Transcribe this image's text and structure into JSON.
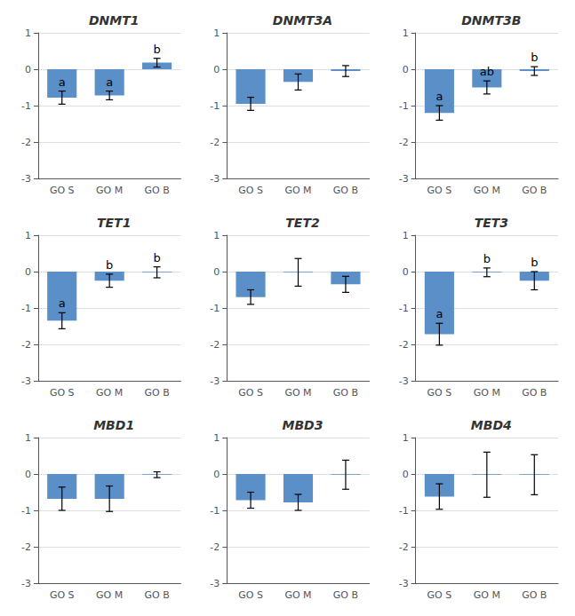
{
  "chart_data": [
    {
      "type": "bar",
      "title": "DNMT1",
      "categories": [
        "GO S",
        "GO M",
        "GO B"
      ],
      "values": [
        -0.78,
        -0.72,
        0.18
      ],
      "errors": [
        0.18,
        0.12,
        0.12
      ],
      "annotations": [
        {
          "category": "GO S",
          "text": "a"
        },
        {
          "category": "GO M",
          "text": "a"
        },
        {
          "category": "GO B",
          "text": "b"
        }
      ],
      "color": "#5b8fc8",
      "ylim": [
        -3,
        1
      ],
      "yticks": [
        -3,
        -2,
        -1,
        0,
        1
      ],
      "grid": true
    },
    {
      "type": "bar",
      "title": "DNMT3A",
      "categories": [
        "GO S",
        "GO M",
        "GO B"
      ],
      "values": [
        -0.95,
        -0.35,
        -0.05
      ],
      "errors": [
        0.18,
        0.22,
        0.15
      ],
      "color": "#5b8fc8",
      "ylim": [
        -3,
        1
      ],
      "yticks": [
        -3,
        -2,
        -1,
        0,
        1
      ],
      "grid": true
    },
    {
      "type": "bar",
      "title": "DNMT3B",
      "categories": [
        "GO S",
        "GO M",
        "GO B"
      ],
      "values": [
        -1.2,
        -0.5,
        -0.05
      ],
      "errors": [
        0.2,
        0.18,
        0.12
      ],
      "annotations": [
        {
          "category": "GO S",
          "text": "a"
        },
        {
          "category": "GO M",
          "text": "ab"
        },
        {
          "category": "GO B",
          "text": "b"
        }
      ],
      "color": "#5b8fc8",
      "ylim": [
        -3,
        1
      ],
      "yticks": [
        -3,
        -2,
        -1,
        0,
        1
      ],
      "grid": true
    },
    {
      "type": "bar",
      "title": "TET1",
      "categories": [
        "GO S",
        "GO M",
        "GO B"
      ],
      "values": [
        -1.35,
        -0.25,
        -0.02
      ],
      "errors": [
        0.22,
        0.18,
        0.15
      ],
      "annotations": [
        {
          "category": "GO S",
          "text": "a"
        },
        {
          "category": "GO M",
          "text": "b"
        },
        {
          "category": "GO B",
          "text": "b"
        }
      ],
      "color": "#5b8fc8",
      "ylim": [
        -3,
        1
      ],
      "yticks": [
        -3,
        -2,
        -1,
        0,
        1
      ],
      "grid": true
    },
    {
      "type": "bar",
      "title": "TET2",
      "categories": [
        "GO S",
        "GO M",
        "GO B"
      ],
      "values": [
        -0.7,
        -0.02,
        -0.35
      ],
      "errors": [
        0.2,
        0.38,
        0.22
      ],
      "color": "#5b8fc8",
      "ylim": [
        -3,
        1
      ],
      "yticks": [
        -3,
        -2,
        -1,
        0,
        1
      ],
      "grid": true
    },
    {
      "type": "bar",
      "title": "TET3",
      "categories": [
        "GO S",
        "GO M",
        "GO B"
      ],
      "values": [
        -1.72,
        -0.02,
        -0.25
      ],
      "errors": [
        0.3,
        0.12,
        0.25
      ],
      "annotations": [
        {
          "category": "GO S",
          "text": "a"
        },
        {
          "category": "GO M",
          "text": "b"
        },
        {
          "category": "GO B",
          "text": "b"
        }
      ],
      "color": "#5b8fc8",
      "ylim": [
        -3,
        1
      ],
      "yticks": [
        -3,
        -2,
        -1,
        0,
        1
      ],
      "grid": true
    },
    {
      "type": "bar",
      "title": "MBD1",
      "categories": [
        "GO S",
        "GO M",
        "GO B"
      ],
      "values": [
        -0.68,
        -0.68,
        -0.02
      ],
      "errors": [
        0.32,
        0.35,
        0.08
      ],
      "color": "#5b8fc8",
      "ylim": [
        -3,
        1
      ],
      "yticks": [
        -3,
        -2,
        -1,
        0,
        1
      ],
      "grid": true
    },
    {
      "type": "bar",
      "title": "MBD3",
      "categories": [
        "GO S",
        "GO M",
        "GO B"
      ],
      "values": [
        -0.72,
        -0.78,
        -0.02
      ],
      "errors": [
        0.22,
        0.22,
        0.4
      ],
      "color": "#5b8fc8",
      "ylim": [
        -3,
        1
      ],
      "yticks": [
        -3,
        -2,
        -1,
        0,
        1
      ],
      "grid": true
    },
    {
      "type": "bar",
      "title": "MBD4",
      "categories": [
        "GO S",
        "GO M",
        "GO B"
      ],
      "values": [
        -0.62,
        -0.02,
        -0.02
      ],
      "errors": [
        0.35,
        0.62,
        0.55
      ],
      "color": "#5b8fc8",
      "ylim": [
        -3,
        1
      ],
      "yticks": [
        -3,
        -2,
        -1,
        0,
        1
      ],
      "grid": true
    }
  ]
}
